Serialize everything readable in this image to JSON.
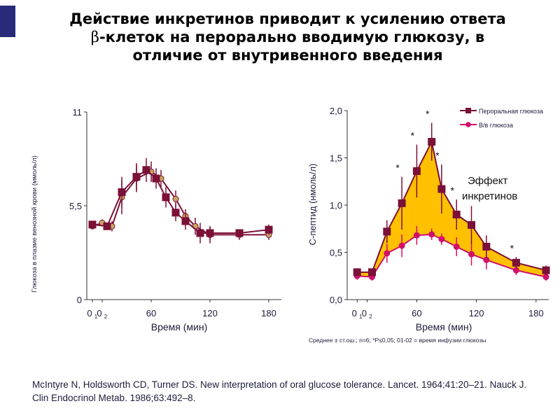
{
  "slide": {
    "title_line1": "Действие инкретинов приводит к усилению ответа",
    "beta_symbol": "β",
    "title_line2_rest": "-клеток на перорально вводимую глюкозу, в",
    "title_line3": "отличие от внутривенного введения",
    "citation": "McIntyre N, Holdsworth CD, Turner DS. New interpretation of oral glucose tolerance. Lancet. 1964;41:20–21. Nauck J. Clin Endocrinol Metab. 1986;63:492–8.",
    "footnote": "Среднее ± ст.ош.; n=6; *P≤0,05; 01-02 = время инфузии глюкозы",
    "colors": {
      "oral": "#7b1038",
      "iv": "#d0106a",
      "fill": "#ffc000",
      "left_iv_marker": "#c8a860",
      "accent": "#2a2a7a"
    }
  },
  "chart_data": [
    {
      "type": "line",
      "title": "",
      "xlabel": "Время (мин)",
      "ylabel": "Глюкоза в плазме венозной крови (ммоль/л)",
      "xlim": [
        -10,
        190
      ],
      "ylim": [
        0,
        11
      ],
      "y_ticks": [
        {
          "v": 0,
          "label": "0"
        },
        {
          "v": 5.5,
          "label": "5,5"
        },
        {
          "v": 11,
          "label": "11"
        }
      ],
      "x_ticks": [
        {
          "v": 0,
          "label": "0",
          "sub": "1"
        },
        {
          "v": 10,
          "label": "0",
          "sub": "2"
        },
        {
          "v": 60,
          "label": "60"
        },
        {
          "v": 120,
          "label": "120"
        },
        {
          "v": 180,
          "label": "180"
        }
      ],
      "series": [
        {
          "name": "Пероральная глюкоза",
          "x": [
            0,
            15,
            30,
            45,
            55,
            65,
            75,
            85,
            95,
            110,
            120,
            150,
            180
          ],
          "y": [
            4.4,
            4.3,
            6.3,
            7.2,
            7.6,
            7.1,
            6.0,
            5.1,
            4.6,
            3.9,
            3.9,
            3.9,
            4.1
          ],
          "err": [
            0.2,
            0.2,
            0.9,
            0.8,
            0.7,
            0.6,
            0.6,
            0.5,
            0.5,
            0.6,
            0.4,
            0.2,
            0.3
          ]
        },
        {
          "name": "В/в глюкоза",
          "x": [
            0,
            10,
            20,
            30,
            45,
            60,
            70,
            85,
            95,
            105,
            120,
            150,
            180
          ],
          "y": [
            4.3,
            4.5,
            4.3,
            6.0,
            7.1,
            7.5,
            7.1,
            5.9,
            4.9,
            4.3,
            3.8,
            3.8,
            3.8
          ],
          "err": [
            0.1,
            0.2,
            0.3,
            1.0,
            0.8,
            0.6,
            0.5,
            0.5,
            0.4,
            0.5,
            0.5,
            0.3,
            0.3
          ]
        }
      ]
    },
    {
      "type": "line",
      "title": "",
      "xlabel": "Время (мин)",
      "ylabel": "С-пептид (нмоль/л)",
      "xlim": [
        -10,
        190
      ],
      "ylim": [
        0,
        2
      ],
      "y_ticks": [
        {
          "v": 0,
          "label": "0,0"
        },
        {
          "v": 0.5,
          "label": "0,5"
        },
        {
          "v": 1.0,
          "label": "1,0"
        },
        {
          "v": 1.5,
          "label": "1,5"
        },
        {
          "v": 2.0,
          "label": "2,0"
        }
      ],
      "x_ticks": [
        {
          "v": 0,
          "label": "0",
          "sub": "1"
        },
        {
          "v": 10,
          "label": "0",
          "sub": "2"
        },
        {
          "v": 60,
          "label": "60"
        },
        {
          "v": 120,
          "label": "120"
        },
        {
          "v": 180,
          "label": "180"
        }
      ],
      "legend": "top-right",
      "annotation": "Эффект инкретинов",
      "series": [
        {
          "name": "Пероральная глюкоза",
          "x": [
            0,
            15,
            30,
            45,
            60,
            75,
            85,
            100,
            115,
            130,
            160,
            190
          ],
          "y": [
            0.29,
            0.29,
            0.72,
            1.02,
            1.36,
            1.67,
            1.17,
            0.9,
            0.79,
            0.56,
            0.39,
            0.31
          ],
          "err": [
            0.04,
            0.04,
            0.12,
            0.28,
            0.28,
            0.2,
            0.26,
            0.16,
            0.2,
            0.12,
            0.06,
            0.05
          ],
          "significant": [
            false,
            false,
            false,
            true,
            true,
            true,
            true,
            true,
            false,
            false,
            true,
            false
          ]
        },
        {
          "name": "В/в глюкоза",
          "x": [
            0,
            15,
            30,
            45,
            60,
            75,
            85,
            100,
            115,
            130,
            160,
            190
          ],
          "y": [
            0.25,
            0.24,
            0.49,
            0.57,
            0.68,
            0.69,
            0.64,
            0.56,
            0.48,
            0.42,
            0.31,
            0.24
          ],
          "err": [
            0.04,
            0.04,
            0.1,
            0.12,
            0.1,
            0.06,
            0.06,
            0.1,
            0.12,
            0.1,
            0.05,
            0.04
          ]
        }
      ]
    }
  ]
}
